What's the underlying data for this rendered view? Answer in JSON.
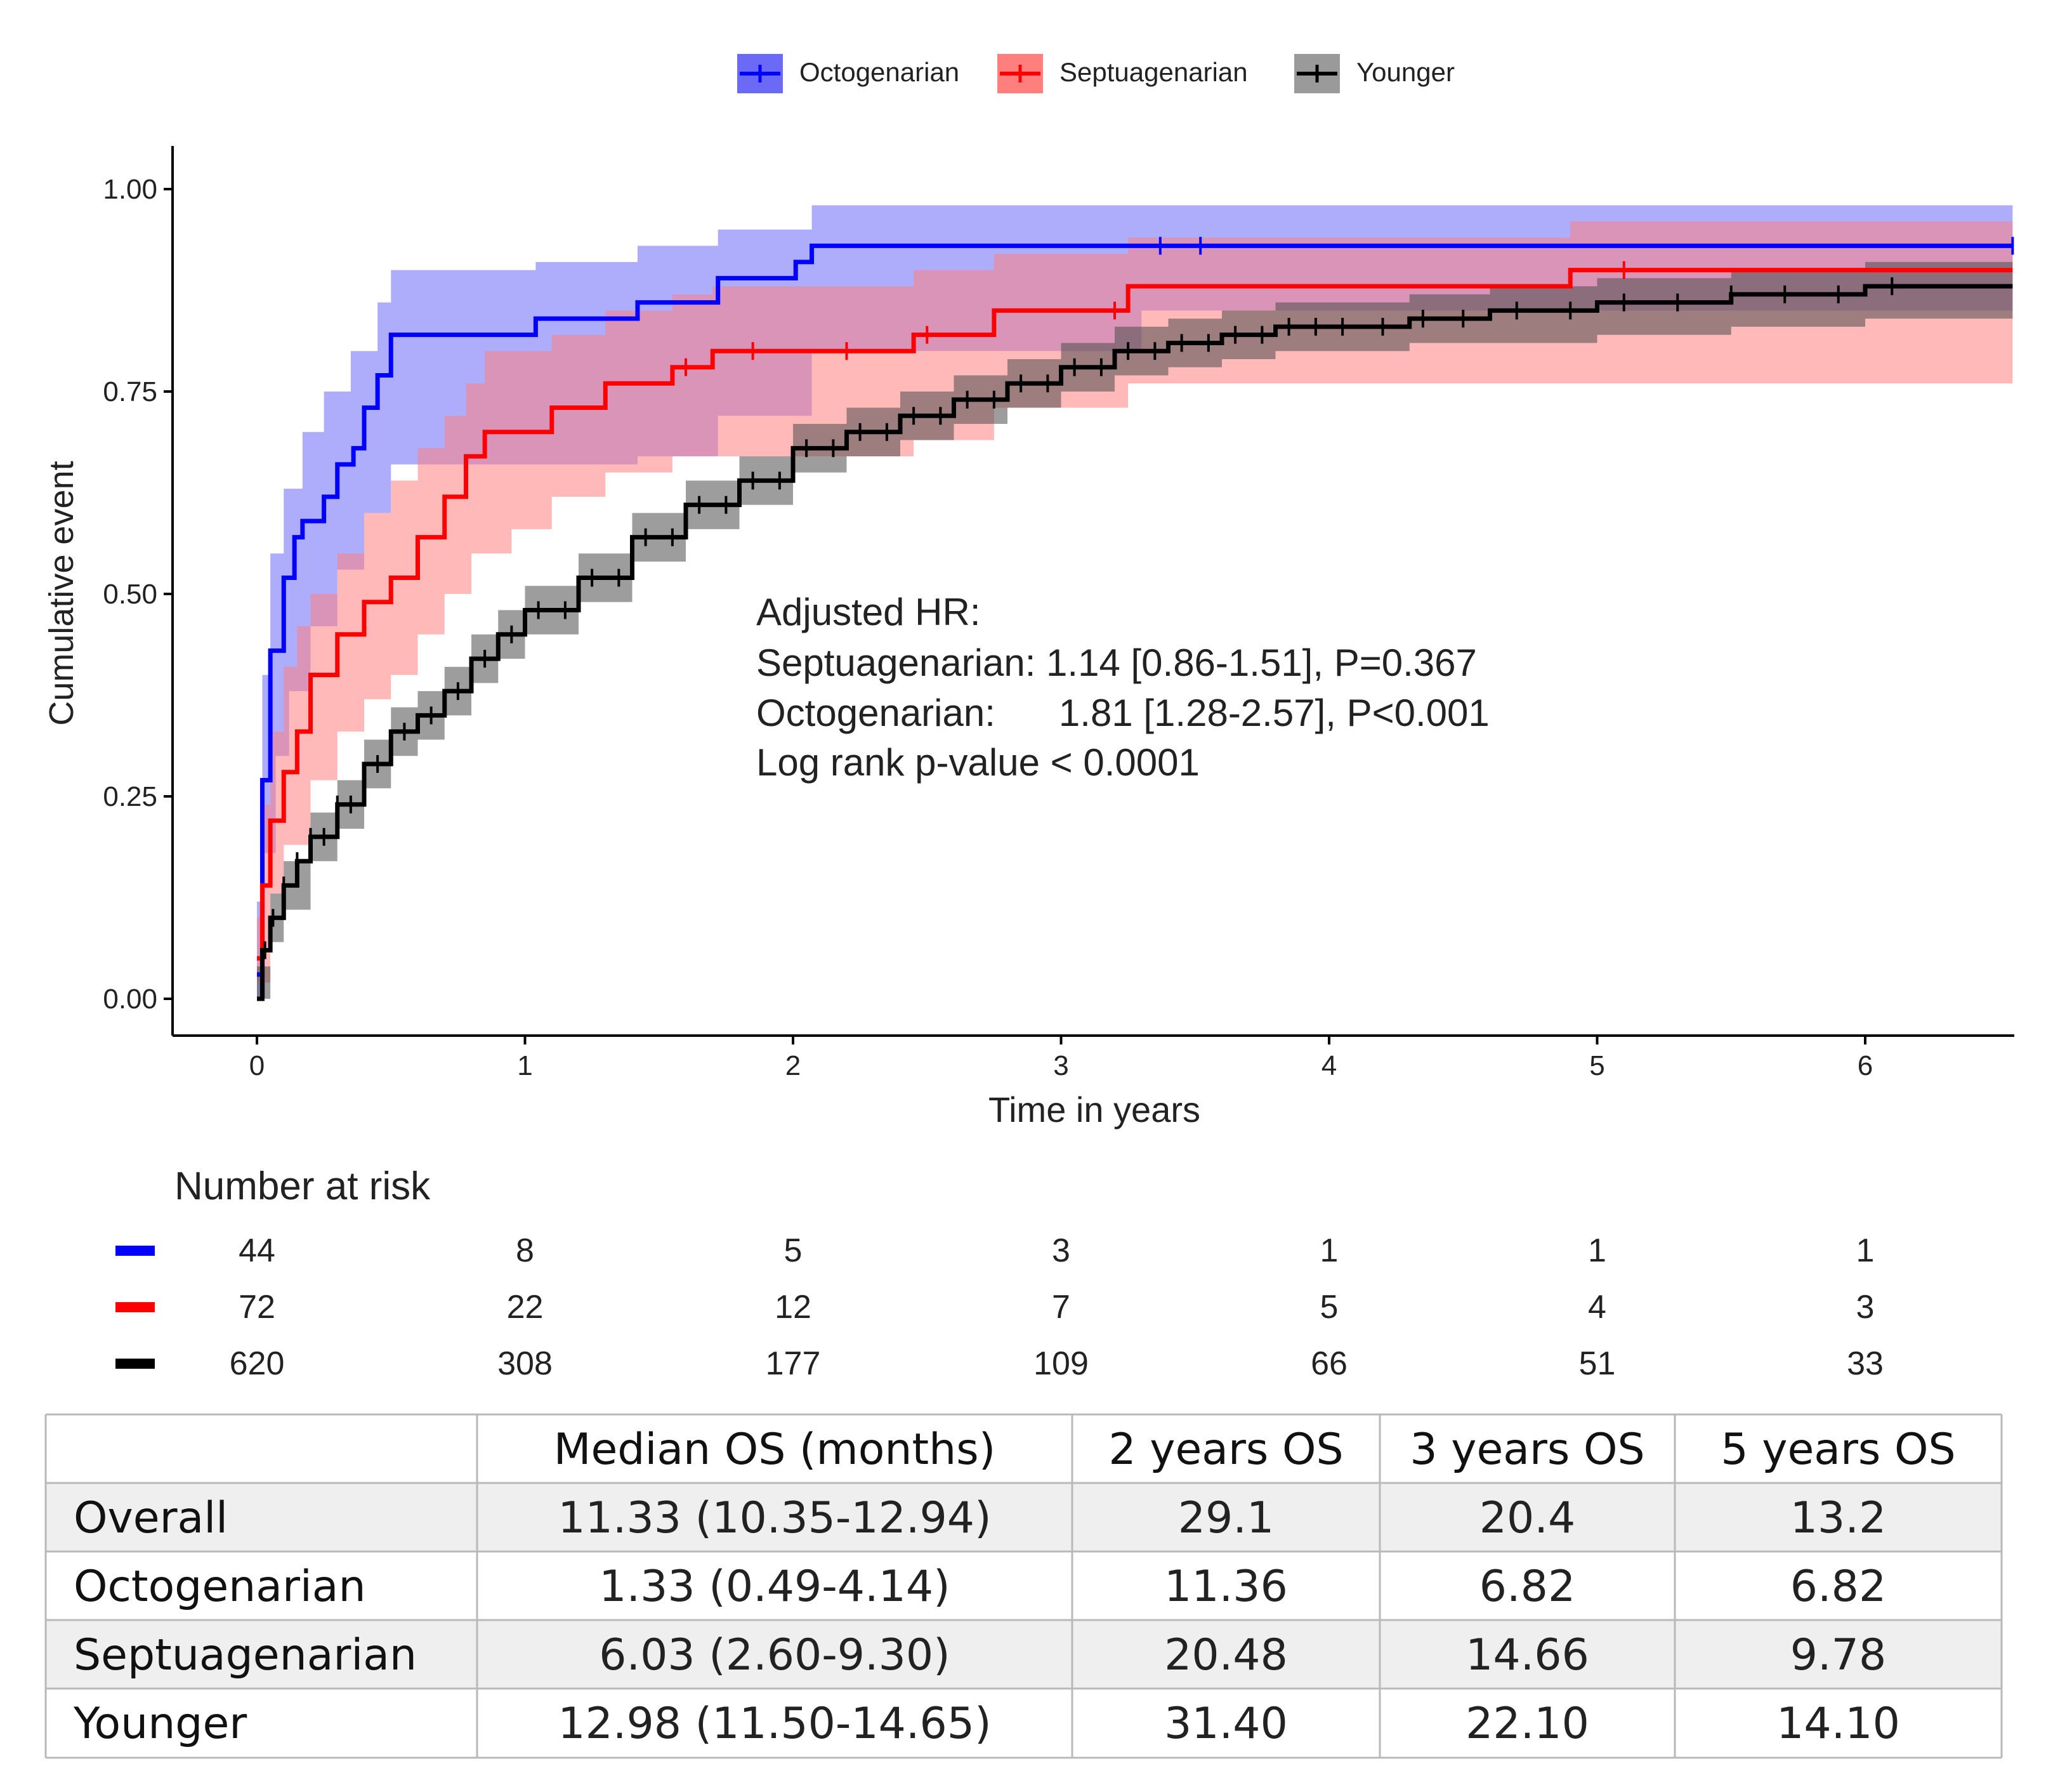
{
  "chart_data": {
    "type": "line",
    "title": "",
    "xlabel": "Time in years",
    "ylabel": "Cumulative event",
    "xlim": [
      -0.3,
      6.55
    ],
    "ylim": [
      -0.05,
      1.05
    ],
    "x_ticks": [
      "0",
      "1",
      "2",
      "3",
      "4",
      "5",
      "6"
    ],
    "y_ticks": [
      "0.00",
      "0.25",
      "0.50",
      "0.75",
      "1.00"
    ],
    "legend": [
      "Octogenarian",
      "Septuagenarian",
      "Younger"
    ],
    "legend_position": "top",
    "series": [
      {
        "name": "Octogenarian",
        "color": "#0000ff",
        "band_color": "#6a6af7",
        "step": [
          [
            0,
            0.03
          ],
          [
            0.02,
            0.27
          ],
          [
            0.05,
            0.43
          ],
          [
            0.1,
            0.52
          ],
          [
            0.14,
            0.57
          ],
          [
            0.17,
            0.59
          ],
          [
            0.25,
            0.62
          ],
          [
            0.3,
            0.66
          ],
          [
            0.36,
            0.68
          ],
          [
            0.4,
            0.73
          ],
          [
            0.45,
            0.77
          ],
          [
            0.5,
            0.82
          ],
          [
            1.04,
            0.84
          ],
          [
            1.42,
            0.86
          ],
          [
            1.72,
            0.89
          ],
          [
            2.01,
            0.91
          ],
          [
            2.07,
            0.93
          ],
          [
            6.55,
            0.93
          ]
        ],
        "lower": [
          [
            0,
            0.0
          ],
          [
            0.03,
            0.18
          ],
          [
            0.07,
            0.3
          ],
          [
            0.12,
            0.38
          ],
          [
            0.2,
            0.46
          ],
          [
            0.3,
            0.53
          ],
          [
            0.4,
            0.6
          ],
          [
            0.5,
            0.66
          ],
          [
            1.42,
            0.67
          ],
          [
            1.72,
            0.72
          ],
          [
            2.07,
            0.8
          ],
          [
            3.3,
            0.85
          ],
          [
            6.55,
            0.88
          ]
        ],
        "upper": [
          [
            0,
            0.12
          ],
          [
            0.02,
            0.4
          ],
          [
            0.05,
            0.55
          ],
          [
            0.1,
            0.63
          ],
          [
            0.17,
            0.7
          ],
          [
            0.25,
            0.75
          ],
          [
            0.35,
            0.8
          ],
          [
            0.45,
            0.86
          ],
          [
            0.5,
            0.9
          ],
          [
            1.04,
            0.91
          ],
          [
            1.42,
            0.93
          ],
          [
            1.72,
            0.95
          ],
          [
            2.07,
            0.98
          ],
          [
            6.55,
            0.98
          ]
        ],
        "censor_x": [
          3.37,
          3.52,
          6.55
        ]
      },
      {
        "name": "Septuagenarian",
        "color": "#ff0000",
        "band_color": "#ff7f7f",
        "step": [
          [
            0,
            0.05
          ],
          [
            0.02,
            0.14
          ],
          [
            0.05,
            0.22
          ],
          [
            0.1,
            0.28
          ],
          [
            0.15,
            0.33
          ],
          [
            0.2,
            0.4
          ],
          [
            0.3,
            0.45
          ],
          [
            0.4,
            0.49
          ],
          [
            0.5,
            0.52
          ],
          [
            0.6,
            0.57
          ],
          [
            0.7,
            0.62
          ],
          [
            0.78,
            0.67
          ],
          [
            0.85,
            0.7
          ],
          [
            1.1,
            0.73
          ],
          [
            1.3,
            0.76
          ],
          [
            1.55,
            0.78
          ],
          [
            1.7,
            0.8
          ],
          [
            2.45,
            0.82
          ],
          [
            2.75,
            0.85
          ],
          [
            3.25,
            0.88
          ],
          [
            4.9,
            0.9
          ],
          [
            6.55,
            0.9
          ]
        ],
        "lower": [
          [
            0,
            0.02
          ],
          [
            0.05,
            0.13
          ],
          [
            0.1,
            0.19
          ],
          [
            0.2,
            0.27
          ],
          [
            0.3,
            0.33
          ],
          [
            0.4,
            0.37
          ],
          [
            0.5,
            0.4
          ],
          [
            0.6,
            0.45
          ],
          [
            0.7,
            0.5
          ],
          [
            0.8,
            0.55
          ],
          [
            0.95,
            0.58
          ],
          [
            1.1,
            0.62
          ],
          [
            1.3,
            0.65
          ],
          [
            1.55,
            0.67
          ],
          [
            2.45,
            0.69
          ],
          [
            2.75,
            0.73
          ],
          [
            3.25,
            0.76
          ],
          [
            4.9,
            0.76
          ],
          [
            6.55,
            0.78
          ]
        ],
        "upper": [
          [
            0,
            0.1
          ],
          [
            0.02,
            0.24
          ],
          [
            0.05,
            0.33
          ],
          [
            0.1,
            0.41
          ],
          [
            0.15,
            0.46
          ],
          [
            0.2,
            0.5
          ],
          [
            0.3,
            0.55
          ],
          [
            0.4,
            0.6
          ],
          [
            0.5,
            0.64
          ],
          [
            0.6,
            0.68
          ],
          [
            0.7,
            0.72
          ],
          [
            0.78,
            0.76
          ],
          [
            0.85,
            0.8
          ],
          [
            1.1,
            0.82
          ],
          [
            1.3,
            0.85
          ],
          [
            1.55,
            0.87
          ],
          [
            1.7,
            0.88
          ],
          [
            2.45,
            0.9
          ],
          [
            2.75,
            0.92
          ],
          [
            3.25,
            0.94
          ],
          [
            4.9,
            0.96
          ],
          [
            6.55,
            0.96
          ]
        ],
        "censor_x": [
          1.6,
          1.85,
          2.2,
          2.5,
          3.2,
          5.1
        ]
      },
      {
        "name": "Younger",
        "color": "#000000",
        "band_color": "#4d4d4d",
        "step": [
          [
            0,
            0.0
          ],
          [
            0.02,
            0.06
          ],
          [
            0.05,
            0.1
          ],
          [
            0.1,
            0.14
          ],
          [
            0.15,
            0.17
          ],
          [
            0.2,
            0.2
          ],
          [
            0.3,
            0.24
          ],
          [
            0.4,
            0.29
          ],
          [
            0.5,
            0.33
          ],
          [
            0.6,
            0.35
          ],
          [
            0.7,
            0.38
          ],
          [
            0.8,
            0.42
          ],
          [
            0.9,
            0.45
          ],
          [
            1.0,
            0.48
          ],
          [
            1.2,
            0.52
          ],
          [
            1.4,
            0.57
          ],
          [
            1.6,
            0.61
          ],
          [
            1.8,
            0.64
          ],
          [
            2.0,
            0.68
          ],
          [
            2.2,
            0.7
          ],
          [
            2.4,
            0.72
          ],
          [
            2.6,
            0.74
          ],
          [
            2.8,
            0.76
          ],
          [
            3.0,
            0.78
          ],
          [
            3.2,
            0.8
          ],
          [
            3.4,
            0.81
          ],
          [
            3.6,
            0.82
          ],
          [
            3.8,
            0.83
          ],
          [
            4.0,
            0.83
          ],
          [
            4.3,
            0.84
          ],
          [
            4.6,
            0.85
          ],
          [
            5.0,
            0.86
          ],
          [
            5.5,
            0.87
          ],
          [
            6.0,
            0.88
          ],
          [
            6.55,
            0.88
          ]
        ],
        "lower": [
          [
            0,
            0.0
          ],
          [
            0.05,
            0.07
          ],
          [
            0.1,
            0.11
          ],
          [
            0.2,
            0.17
          ],
          [
            0.3,
            0.21
          ],
          [
            0.4,
            0.26
          ],
          [
            0.5,
            0.3
          ],
          [
            0.6,
            0.32
          ],
          [
            0.7,
            0.35
          ],
          [
            0.8,
            0.39
          ],
          [
            0.9,
            0.42
          ],
          [
            1.0,
            0.45
          ],
          [
            1.2,
            0.49
          ],
          [
            1.4,
            0.54
          ],
          [
            1.6,
            0.58
          ],
          [
            1.8,
            0.61
          ],
          [
            2.0,
            0.65
          ],
          [
            2.2,
            0.67
          ],
          [
            2.4,
            0.69
          ],
          [
            2.6,
            0.71
          ],
          [
            2.8,
            0.73
          ],
          [
            3.0,
            0.75
          ],
          [
            3.2,
            0.77
          ],
          [
            3.4,
            0.78
          ],
          [
            3.6,
            0.79
          ],
          [
            3.8,
            0.8
          ],
          [
            4.0,
            0.8
          ],
          [
            4.3,
            0.81
          ],
          [
            4.6,
            0.81
          ],
          [
            5.0,
            0.82
          ],
          [
            5.5,
            0.83
          ],
          [
            6.0,
            0.84
          ],
          [
            6.55,
            0.84
          ]
        ],
        "upper": [
          [
            0,
            0.04
          ],
          [
            0.05,
            0.13
          ],
          [
            0.1,
            0.17
          ],
          [
            0.2,
            0.23
          ],
          [
            0.3,
            0.27
          ],
          [
            0.4,
            0.32
          ],
          [
            0.5,
            0.36
          ],
          [
            0.6,
            0.38
          ],
          [
            0.7,
            0.41
          ],
          [
            0.8,
            0.45
          ],
          [
            0.9,
            0.48
          ],
          [
            1.0,
            0.51
          ],
          [
            1.2,
            0.55
          ],
          [
            1.4,
            0.6
          ],
          [
            1.6,
            0.64
          ],
          [
            1.8,
            0.67
          ],
          [
            2.0,
            0.71
          ],
          [
            2.2,
            0.73
          ],
          [
            2.4,
            0.75
          ],
          [
            2.6,
            0.77
          ],
          [
            2.8,
            0.79
          ],
          [
            3.0,
            0.81
          ],
          [
            3.2,
            0.83
          ],
          [
            3.4,
            0.84
          ],
          [
            3.6,
            0.85
          ],
          [
            3.8,
            0.86
          ],
          [
            4.0,
            0.86
          ],
          [
            4.3,
            0.87
          ],
          [
            4.6,
            0.88
          ],
          [
            5.0,
            0.89
          ],
          [
            5.5,
            0.9
          ],
          [
            6.0,
            0.91
          ],
          [
            6.55,
            0.91
          ]
        ],
        "censor_x": [
          0.03,
          0.06,
          0.1,
          0.15,
          0.2,
          0.25,
          0.3,
          0.35,
          0.45,
          0.55,
          0.65,
          0.75,
          0.85,
          0.95,
          1.05,
          1.15,
          1.25,
          1.35,
          1.45,
          1.55,
          1.65,
          1.75,
          1.85,
          1.95,
          2.05,
          2.15,
          2.25,
          2.35,
          2.45,
          2.55,
          2.65,
          2.75,
          2.85,
          2.95,
          3.05,
          3.15,
          3.25,
          3.35,
          3.45,
          3.55,
          3.65,
          3.75,
          3.85,
          3.95,
          4.05,
          4.2,
          4.35,
          4.5,
          4.7,
          4.9,
          5.1,
          5.3,
          5.5,
          5.7,
          5.9,
          6.1
        ]
      }
    ],
    "annotation": [
      "Adjusted HR:",
      "Septuagenarian: 1.14 [0.86-1.51], P=0.367",
      "Octogenarian:      1.81 [1.28-2.57], P<0.001",
      "Log rank p-value < 0.0001"
    ],
    "risk_table": {
      "title": "Number at risk",
      "times": [
        0,
        1,
        2,
        3,
        4,
        5,
        6
      ],
      "rows": [
        {
          "name": "Octogenarian",
          "color": "#0000ff",
          "values": [
            "44",
            "8",
            "5",
            "3",
            "1",
            "1",
            "1"
          ]
        },
        {
          "name": "Septuagenarian",
          "color": "#ff0000",
          "values": [
            "72",
            "22",
            "12",
            "7",
            "5",
            "4",
            "3"
          ]
        },
        {
          "name": "Younger",
          "color": "#000000",
          "values": [
            "620",
            "308",
            "177",
            "109",
            "66",
            "51",
            "33"
          ]
        }
      ]
    }
  },
  "summary_table": {
    "headers": [
      "",
      "Median OS (months)",
      "2 years OS",
      "3 years OS",
      "5 years OS"
    ],
    "rows": [
      [
        "Overall",
        "11.33 (10.35-12.94)",
        "29.1",
        "20.4",
        "13.2"
      ],
      [
        "Octogenarian",
        "1.33 (0.49-4.14)",
        "11.36",
        "6.82",
        "6.82"
      ],
      [
        "Septuagenarian",
        "6.03 (2.60-9.30)",
        "20.48",
        "14.66",
        "9.78"
      ],
      [
        "Younger",
        "12.98 (11.50-14.65)",
        "31.40",
        "22.10",
        "14.10"
      ]
    ]
  }
}
